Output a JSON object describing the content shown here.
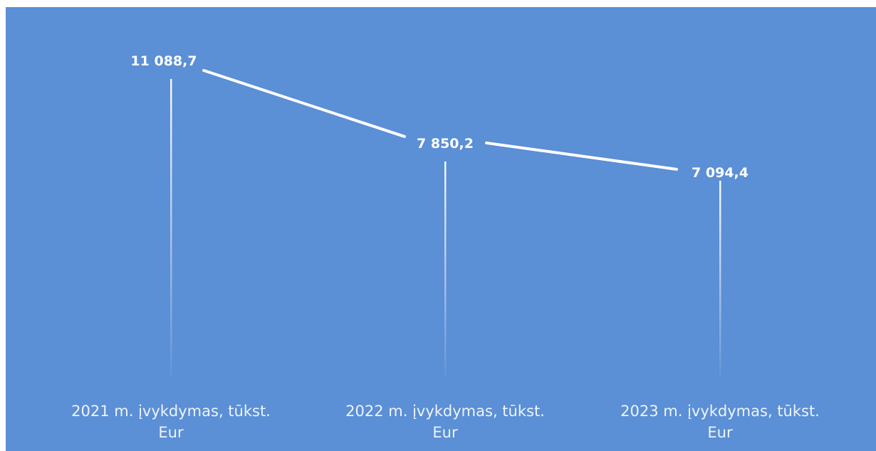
{
  "chart_data": {
    "type": "line",
    "categories": [
      "2021 m. įvykdymas, tūkst. Eur",
      "2022 m. įvykdymas, tūkst. Eur",
      "2023 m. įvykdymas, tūkst. Eur"
    ],
    "category_lines": [
      [
        "2021 m. įvykdymas, tūkst.",
        "Eur"
      ],
      [
        "2022 m. įvykdymas, tūkst.",
        "Eur"
      ],
      [
        "2023 m. įvykdymas, tūkst.",
        "Eur"
      ]
    ],
    "values": [
      11088.7,
      7850.2,
      7094.4
    ],
    "value_labels": [
      "11 088,7",
      "7 850,2",
      "7 094,4"
    ],
    "title": "",
    "xlabel": "",
    "ylabel": "",
    "grid": false,
    "legend": "none",
    "colors": {
      "background": "#5b8fd6",
      "line": "#ffffff",
      "text": "#ffffff"
    }
  }
}
